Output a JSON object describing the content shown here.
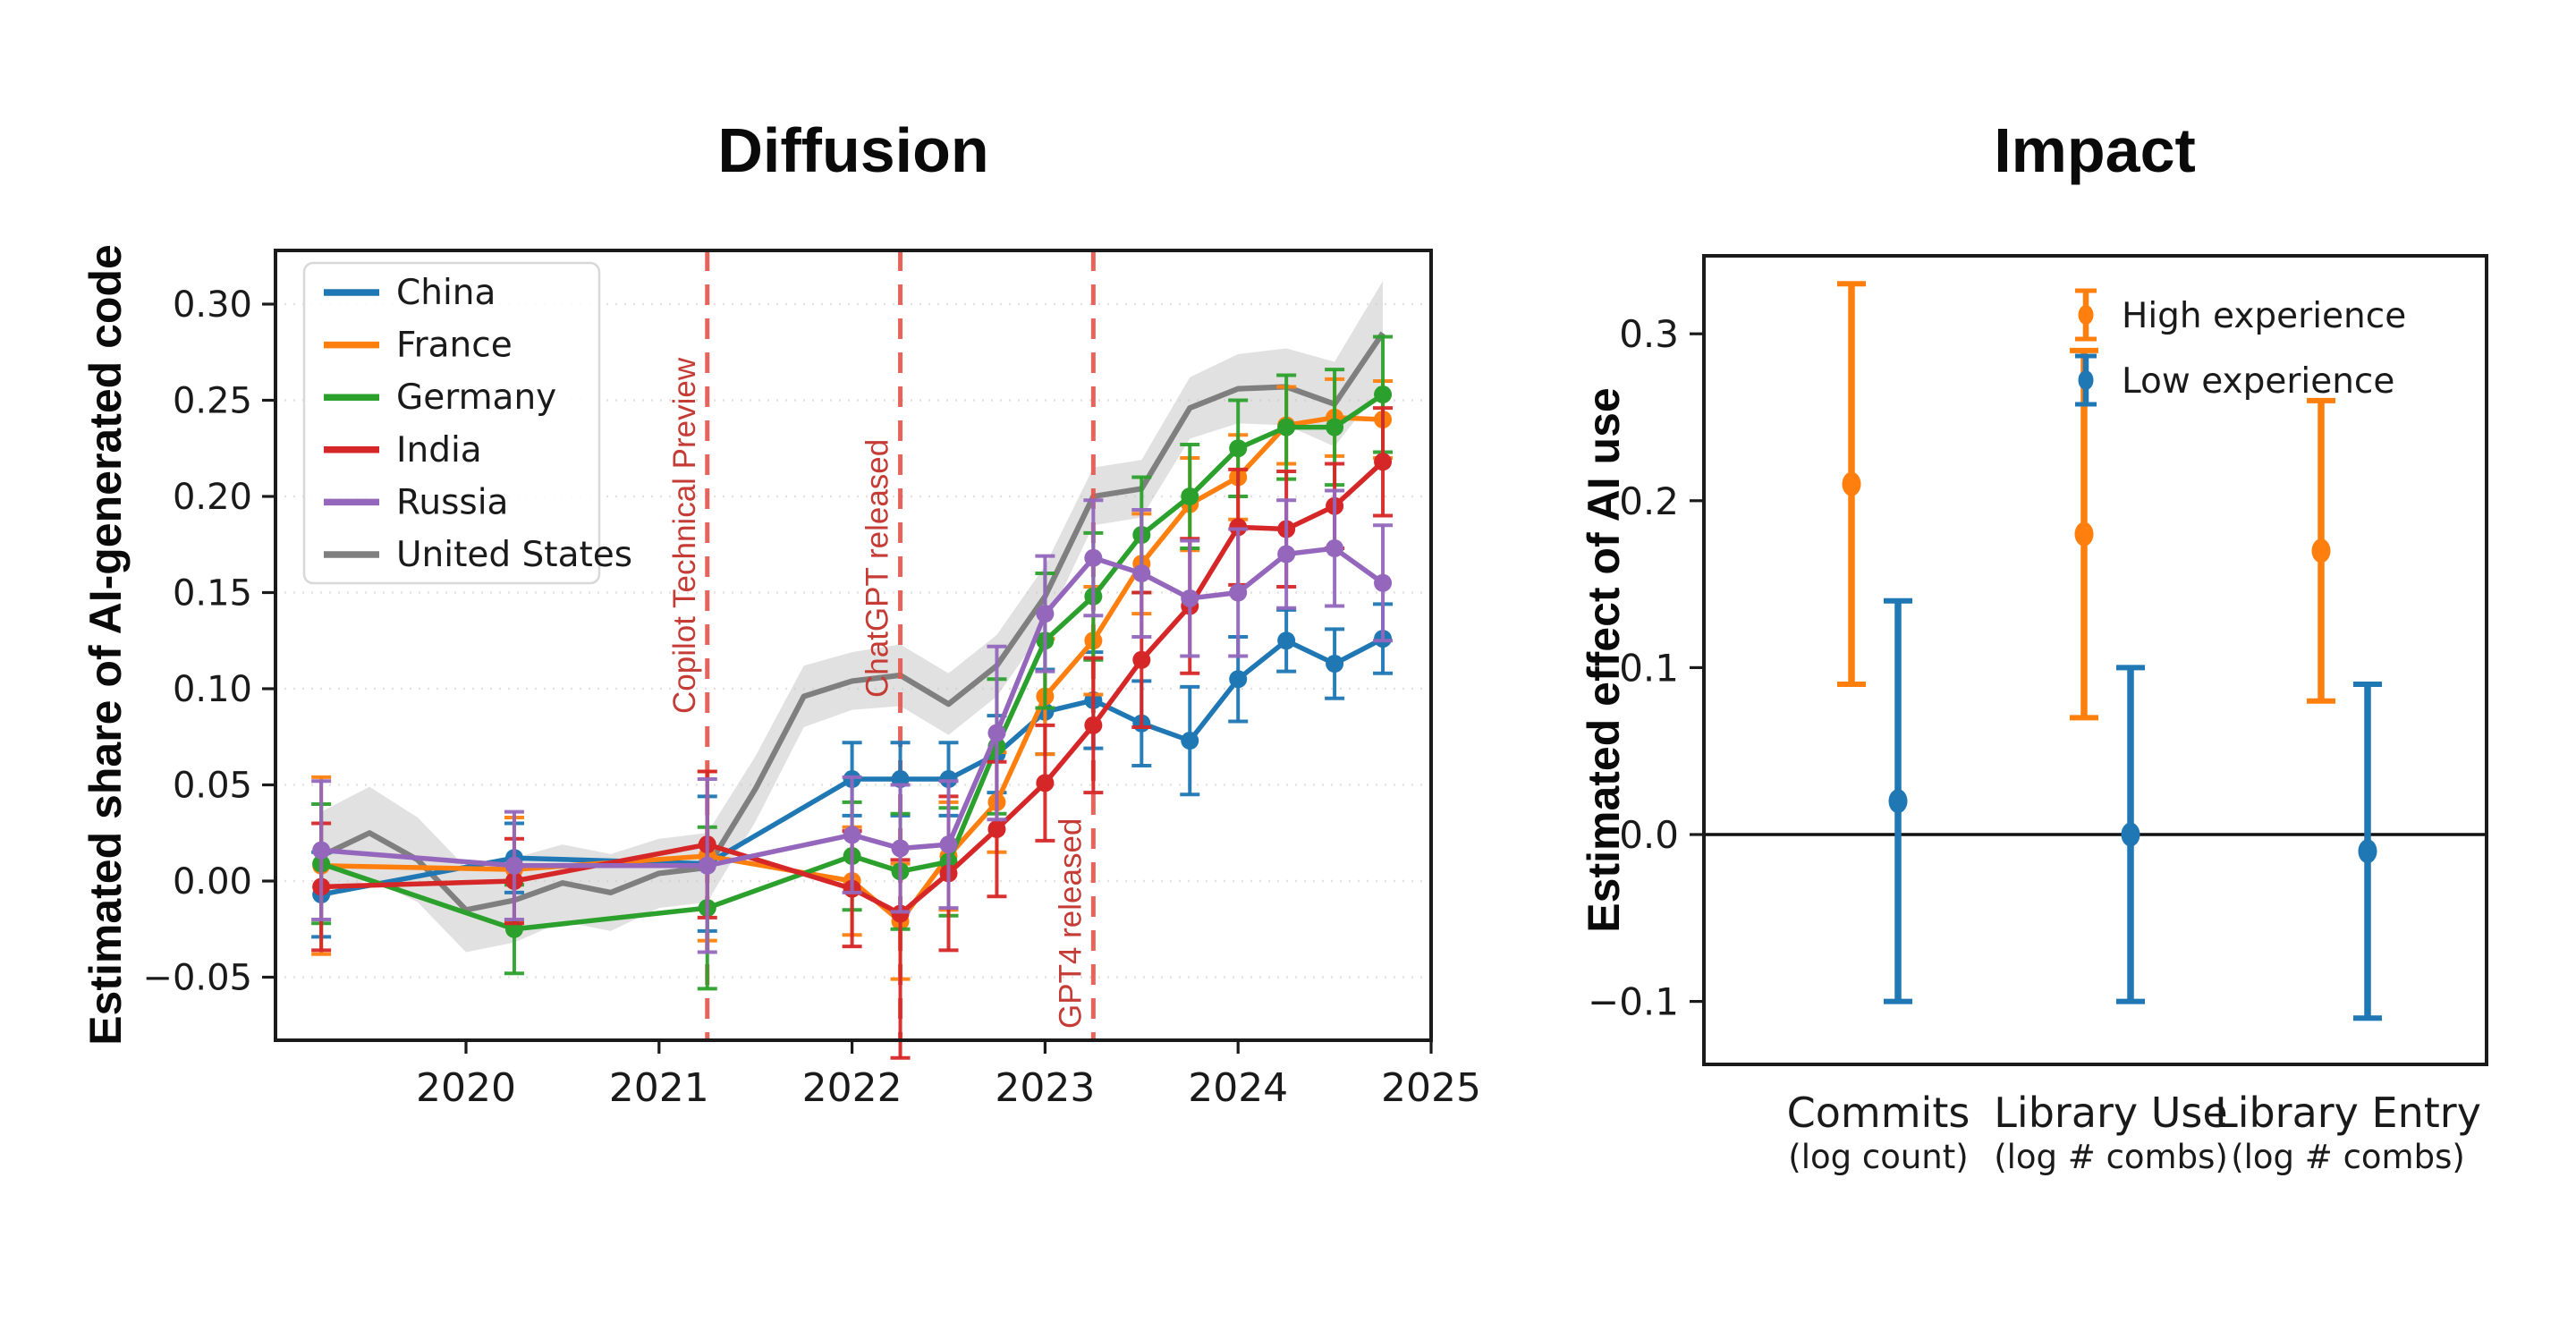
{
  "figures": {
    "left": {
      "title": "Diffusion",
      "y_label": "Estimated share of AI-generated code"
    },
    "right": {
      "title": "Impact",
      "y_label": "Estimated effect of AI use"
    }
  },
  "colors": {
    "china": "#1f77b4",
    "france": "#ff7f0e",
    "germany": "#2ca02c",
    "india": "#d62728",
    "russia": "#9467bd",
    "united_states": "#7f7f7f",
    "band": "#c9c9c9",
    "event_line": "#e4574e",
    "event_text": "#c43c35",
    "grid": "#e8dfdf",
    "spine": "#1a1a1a",
    "high_experience": "#ff7f0e",
    "low_experience": "#1f77b4"
  },
  "chart_data": [
    {
      "type": "line",
      "title": "Diffusion",
      "ylabel": "Estimated share of AI-generated code",
      "xlabel": "",
      "xlim": [
        2019.01,
        2025.0
      ],
      "ylim": [
        -0.083,
        0.328
      ],
      "grid": "horizontal-dotted",
      "legend_position": "upper left",
      "x_ticks": [
        {
          "v": 2020,
          "label": "2020"
        },
        {
          "v": 2021,
          "label": "2021"
        },
        {
          "v": 2022,
          "label": "2022"
        },
        {
          "v": 2023,
          "label": "2023"
        },
        {
          "v": 2024,
          "label": "2024"
        },
        {
          "v": 2025,
          "label": "2025"
        }
      ],
      "y_ticks": [
        {
          "v": -0.05,
          "label": "−0.05"
        },
        {
          "v": 0.0,
          "label": "0.00"
        },
        {
          "v": 0.05,
          "label": "0.05"
        },
        {
          "v": 0.1,
          "label": "0.10"
        },
        {
          "v": 0.15,
          "label": "0.15"
        },
        {
          "v": 0.2,
          "label": "0.20"
        },
        {
          "v": 0.25,
          "label": "0.25"
        },
        {
          "v": 0.3,
          "label": "0.30"
        }
      ],
      "events": [
        {
          "label": "Copilot Technical Preview",
          "x": 2021.25
        },
        {
          "label": "ChatGPT released",
          "x": 2022.25
        },
        {
          "label": "GPT4 released",
          "x": 2023.25
        }
      ],
      "x": [
        2019.25,
        2020.25,
        2021.25,
        2022.0,
        2022.25,
        2022.5,
        2022.75,
        2023.0,
        2023.25,
        2023.5,
        2023.75,
        2024.0,
        2024.25,
        2024.5,
        2024.75
      ],
      "series": [
        {
          "name": "China",
          "color": "#1f77b4",
          "y": [
            -0.007,
            0.012,
            0.009,
            0.053,
            0.053,
            0.053,
            0.066,
            0.088,
            0.094,
            0.082,
            0.073,
            0.105,
            0.125,
            0.113,
            0.126
          ],
          "err": [
            0.022,
            0.018,
            0.035,
            0.019,
            0.019,
            0.019,
            0.02,
            0.022,
            0.025,
            0.022,
            0.028,
            0.022,
            0.016,
            0.018,
            0.018
          ]
        },
        {
          "name": "France",
          "color": "#ff7f0e",
          "y": [
            0.008,
            0.006,
            0.013,
            0.0,
            -0.021,
            0.013,
            0.041,
            0.096,
            0.125,
            0.165,
            0.196,
            0.21,
            0.237,
            0.241,
            0.24
          ],
          "err": [
            0.046,
            0.027,
            0.044,
            0.028,
            0.03,
            0.028,
            0.026,
            0.03,
            0.028,
            0.026,
            0.024,
            0.022,
            0.02,
            0.02,
            0.02
          ]
        },
        {
          "name": "Germany",
          "color": "#2ca02c",
          "y": [
            0.009,
            -0.025,
            -0.014,
            0.013,
            0.005,
            0.01,
            0.07,
            0.125,
            0.148,
            0.18,
            0.2,
            0.225,
            0.236,
            0.236,
            0.253
          ],
          "err": [
            0.031,
            0.023,
            0.042,
            0.028,
            0.03,
            0.028,
            0.035,
            0.035,
            0.033,
            0.03,
            0.027,
            0.025,
            0.027,
            0.03,
            0.03
          ]
        },
        {
          "name": "India",
          "color": "#d62728",
          "y": [
            -0.003,
            0.0,
            0.019,
            -0.004,
            -0.017,
            0.004,
            0.027,
            0.051,
            0.081,
            0.115,
            0.143,
            0.184,
            0.183,
            0.195,
            0.218
          ],
          "err": [
            0.033,
            0.022,
            0.038,
            0.03,
            [
              0.075,
              0.028
            ],
            0.04,
            0.035,
            0.03,
            0.035,
            0.035,
            0.035,
            0.03,
            0.03,
            0.022,
            0.028
          ]
        },
        {
          "name": "Russia",
          "color": "#9467bd",
          "y": [
            0.016,
            0.008,
            0.008,
            0.024,
            0.017,
            0.019,
            0.077,
            0.139,
            0.168,
            0.16,
            0.147,
            0.15,
            0.17,
            0.173,
            0.155
          ],
          "err": [
            0.036,
            0.028,
            0.045,
            0.03,
            0.033,
            0.033,
            0.045,
            0.03,
            0.03,
            0.033,
            0.03,
            0.033,
            0.028,
            0.03,
            0.03
          ]
        },
        {
          "name": "United States",
          "color": "#7f7f7f",
          "style": "band-line",
          "x": [
            2019.25,
            2019.5,
            2019.75,
            2020.0,
            2020.25,
            2020.5,
            2020.75,
            2021.0,
            2021.25,
            2021.5,
            2021.75,
            2022.0,
            2022.25,
            2022.5,
            2022.75,
            2023.0,
            2023.25,
            2023.5,
            2023.75,
            2024.0,
            2024.25,
            2024.5,
            2024.75
          ],
          "y": [
            0.013,
            0.025,
            0.011,
            -0.015,
            -0.01,
            -0.001,
            -0.006,
            0.004,
            0.007,
            0.048,
            0.096,
            0.104,
            0.107,
            0.092,
            0.112,
            0.148,
            0.2,
            0.204,
            0.246,
            0.256,
            0.257,
            0.248,
            0.285
          ],
          "band_hw": [
            0.023,
            0.024,
            0.022,
            0.022,
            0.022,
            0.02,
            0.02,
            0.018,
            0.018,
            0.017,
            0.016,
            0.015,
            0.016,
            0.016,
            0.016,
            0.016,
            0.015,
            0.015,
            0.016,
            0.018,
            0.02,
            0.022,
            0.027
          ]
        }
      ]
    },
    {
      "type": "scatter",
      "title": "Impact",
      "ylabel": "Estimated effect of AI use",
      "ylim": [
        -0.138,
        0.347
      ],
      "zero_line": true,
      "grid": "off",
      "legend_position": "upper right",
      "y_ticks": [
        {
          "v": -0.1,
          "label": "−0.1"
        },
        {
          "v": 0.0,
          "label": "0.0"
        },
        {
          "v": 0.1,
          "label": "0.1"
        },
        {
          "v": 0.2,
          "label": "0.2"
        },
        {
          "v": 0.3,
          "label": "0.3"
        }
      ],
      "categories": [
        {
          "label": "Commits",
          "sub": "(log count)"
        },
        {
          "label": "Library Use",
          "sub": "(log # combs)"
        },
        {
          "label": "Library Entry",
          "sub": "(log # combs)"
        }
      ],
      "series": [
        {
          "name": "High experience",
          "color": "#ff7f0e",
          "values": [
            0.21,
            0.18,
            0.17
          ],
          "ci_low": [
            0.09,
            0.07,
            0.08
          ],
          "ci_high": [
            0.33,
            0.29,
            0.26
          ]
        },
        {
          "name": "Low experience",
          "color": "#1f77b4",
          "values": [
            0.02,
            0.0,
            -0.01
          ],
          "ci_low": [
            -0.1,
            -0.1,
            -0.11
          ],
          "ci_high": [
            0.14,
            0.1,
            0.09
          ]
        }
      ]
    }
  ]
}
